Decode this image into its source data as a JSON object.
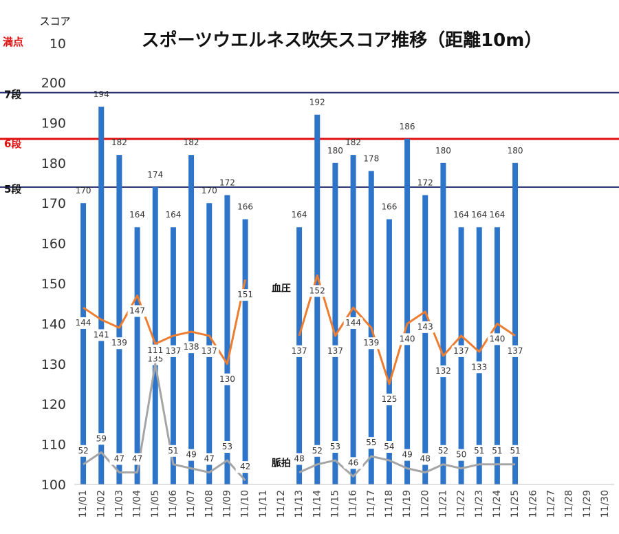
{
  "chart_data": {
    "type": "bar",
    "title": "スポーツウエルネス吹矢スコア推移（距離10m）",
    "y_unit_label": "スコア",
    "full_score_label": "満点",
    "full_score_tick": "10",
    "ylim": [
      100,
      200
    ],
    "yticks": [
      100,
      110,
      120,
      130,
      140,
      150,
      160,
      170,
      180,
      190,
      200
    ],
    "categories": [
      "11/01",
      "11/02",
      "11/03",
      "11/04",
      "11/05",
      "11/06",
      "11/07",
      "11/08",
      "11/09",
      "11/10",
      "11/11",
      "11/12",
      "11/13",
      "11/14",
      "11/15",
      "11/16",
      "11/17",
      "11/18",
      "11/19",
      "11/20",
      "11/21",
      "11/22",
      "11/23",
      "11/24",
      "11/25",
      "11/26",
      "11/27",
      "11/28",
      "11/29",
      "11/30"
    ],
    "series": [
      {
        "kind": "bar",
        "color": "#2e75c9",
        "values": [
          170,
          194,
          182,
          164,
          174,
          164,
          182,
          170,
          172,
          166,
          null,
          null,
          164,
          192,
          180,
          182,
          178,
          166,
          186,
          172,
          180,
          164,
          164,
          164,
          180,
          null,
          null,
          null,
          null,
          null
        ]
      },
      {
        "kind": "line",
        "name": "血圧",
        "color": "#ed7d31",
        "values": [
          144,
          141,
          139,
          147,
          135,
          137,
          138,
          137,
          130,
          151,
          null,
          null,
          137,
          152,
          137,
          144,
          139,
          125,
          140,
          143,
          132,
          137,
          133,
          140,
          137,
          null,
          null,
          null,
          null,
          null
        ]
      },
      {
        "kind": "line",
        "name": "脈拍",
        "color": "#a5a5a5",
        "display_values": [
          52,
          59,
          47,
          47,
          111,
          51,
          49,
          47,
          53,
          42,
          null,
          null,
          48,
          52,
          53,
          46,
          55,
          54,
          49,
          48,
          52,
          50,
          51,
          51,
          51,
          null,
          null,
          null,
          null,
          null
        ],
        "plot_y": [
          105,
          108,
          103,
          103,
          130,
          105,
          104,
          103,
          106,
          101,
          null,
          null,
          103,
          105,
          106,
          102,
          107,
          106,
          104,
          103,
          105,
          104,
          105,
          105,
          105,
          null,
          null,
          null,
          null,
          null
        ]
      }
    ],
    "reference_lines": [
      {
        "label": "7段",
        "value": 197.5,
        "color": "#1f2a6b"
      },
      {
        "label": "6段",
        "value": 186,
        "color": "#e01010"
      },
      {
        "label": "5段",
        "value": 174,
        "color": "#1f2a6b"
      }
    ],
    "grid": false,
    "legend": "none"
  }
}
